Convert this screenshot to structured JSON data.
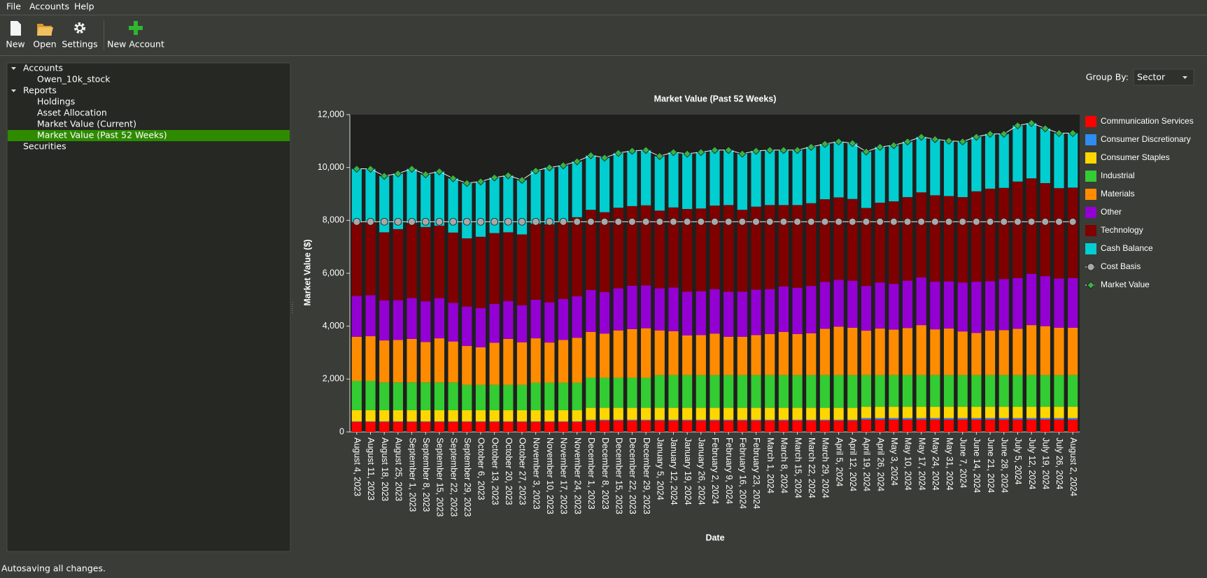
{
  "menu": [
    "File",
    "Accounts",
    "Help"
  ],
  "toolbar": [
    "New",
    "Open",
    "Settings",
    "New Account"
  ],
  "tree": [
    {
      "label": "Accounts",
      "children": [
        {
          "label": "Owen_10k_stock"
        }
      ]
    },
    {
      "label": "Reports",
      "children": [
        {
          "label": "Holdings"
        },
        {
          "label": "Asset Allocation"
        },
        {
          "label": "Market Value (Current)"
        },
        {
          "label": "Market Value (Past 52 Weeks)",
          "selected": true
        }
      ]
    },
    {
      "label": "Securities"
    }
  ],
  "group_by": {
    "label": "Group By:",
    "value": "Sector"
  },
  "status": "Autosaving all changes.",
  "chart_data": {
    "type": "bar",
    "stacked": true,
    "title": "Market Value (Past 52 Weeks)",
    "x_label": "Date",
    "y_label": "Market Value ($)",
    "legend": "right",
    "grid": false,
    "ylim": [
      0,
      12000
    ],
    "yticks": [
      0,
      {
        "value": 2000,
        "label": "2,000"
      },
      {
        "value": 4000,
        "label": "4,000"
      },
      {
        "value": 6000,
        "label": "6,000"
      },
      {
        "value": 8000,
        "label": "8,000"
      },
      {
        "value": 10000,
        "label": "10,000"
      },
      {
        "value": 12000,
        "label": "12,000"
      }
    ],
    "categories": [
      "August 4, 2023",
      "August 11, 2023",
      "August 18, 2023",
      "August 25, 2023",
      "September 1, 2023",
      "September 8, 2023",
      "September 15, 2023",
      "September 22, 2023",
      "September 29, 2023",
      "October 6, 2023",
      "October 13, 2023",
      "October 20, 2023",
      "October 27, 2023",
      "November 3, 2023",
      "November 10, 2023",
      "November 17, 2023",
      "November 24, 2023",
      "December 1, 2023",
      "December 8, 2023",
      "December 15, 2023",
      "December 22, 2023",
      "December 29, 2023",
      "January 5, 2024",
      "January 12, 2024",
      "January 19, 2024",
      "January 26, 2024",
      "February 2, 2024",
      "February 9, 2024",
      "February 16, 2024",
      "February 23, 2024",
      "March 1, 2024",
      "March 8, 2024",
      "March 15, 2024",
      "March 22, 2024",
      "March 29, 2024",
      "April 5, 2024",
      "April 12, 2024",
      "April 19, 2024",
      "April 26, 2024",
      "May 3, 2024",
      "May 10, 2024",
      "May 17, 2024",
      "May 24, 2024",
      "May 31, 2024",
      "June 7, 2024",
      "June 14, 2024",
      "June 21, 2024",
      "June 28, 2024",
      "July 5, 2024",
      "July 12, 2024",
      "July 19, 2024",
      "July 26, 2024",
      "August 2, 2024"
    ],
    "series": [
      {
        "name": "Communication Services",
        "color": "#ff0000",
        "values": [
          380,
          380,
          380,
          380,
          380,
          380,
          380,
          380,
          380,
          380,
          380,
          380,
          380,
          380,
          380,
          380,
          380,
          430,
          430,
          430,
          430,
          430,
          430,
          430,
          430,
          430,
          430,
          430,
          430,
          430,
          430,
          430,
          430,
          430,
          430,
          430,
          430,
          470,
          470,
          470,
          470,
          470,
          470,
          470,
          470,
          470,
          470,
          470,
          470,
          470,
          470,
          470,
          470
        ]
      },
      {
        "name": "Consumer Discretionary",
        "color": "#2f8cf0",
        "values": [
          20,
          20,
          20,
          20,
          20,
          20,
          20,
          20,
          20,
          20,
          20,
          20,
          20,
          20,
          20,
          20,
          20,
          30,
          30,
          30,
          30,
          30,
          30,
          30,
          30,
          30,
          30,
          30,
          30,
          30,
          30,
          30,
          30,
          30,
          30,
          30,
          30,
          60,
          60,
          60,
          60,
          60,
          60,
          60,
          60,
          60,
          60,
          60,
          60,
          60,
          60,
          60,
          60
        ]
      },
      {
        "name": "Consumer Staples",
        "color": "#ffd700",
        "values": [
          420,
          420,
          420,
          420,
          420,
          420,
          420,
          420,
          420,
          420,
          420,
          420,
          420,
          420,
          420,
          420,
          420,
          450,
          450,
          450,
          450,
          450,
          450,
          450,
          450,
          450,
          450,
          450,
          450,
          450,
          450,
          450,
          450,
          450,
          450,
          450,
          450,
          420,
          420,
          420,
          420,
          420,
          420,
          420,
          420,
          420,
          420,
          420,
          420,
          420,
          420,
          420,
          420
        ]
      },
      {
        "name": "Industrial",
        "color": "#33cc33",
        "values": [
          1110,
          1110,
          1050,
          1050,
          1050,
          1050,
          1050,
          1050,
          960,
          960,
          960,
          960,
          960,
          1040,
          1040,
          1040,
          1040,
          1140,
          1140,
          1140,
          1140,
          1140,
          1240,
          1240,
          1240,
          1240,
          1240,
          1240,
          1240,
          1240,
          1240,
          1240,
          1240,
          1240,
          1240,
          1240,
          1240,
          1200,
          1200,
          1200,
          1200,
          1200,
          1200,
          1200,
          1200,
          1200,
          1200,
          1200,
          1200,
          1200,
          1200,
          1200,
          1200
        ]
      },
      {
        "name": "Materials",
        "color": "#ff8c00",
        "values": [
          1670,
          1690,
          1590,
          1610,
          1650,
          1530,
          1670,
          1550,
          1470,
          1420,
          1590,
          1740,
          1610,
          1680,
          1520,
          1620,
          1700,
          1730,
          1670,
          1790,
          1840,
          1870,
          1690,
          1660,
          1500,
          1510,
          1570,
          1450,
          1450,
          1510,
          1550,
          1630,
          1550,
          1580,
          1750,
          1830,
          1790,
          1680,
          1760,
          1720,
          1780,
          1890,
          1730,
          1760,
          1650,
          1590,
          1680,
          1700,
          1750,
          1890,
          1850,
          1790,
          1790
        ]
      },
      {
        "name": "Other",
        "color": "#9400d3",
        "values": [
          1540,
          1550,
          1510,
          1500,
          1540,
          1540,
          1520,
          1460,
          1490,
          1480,
          1470,
          1430,
          1400,
          1460,
          1520,
          1550,
          1570,
          1590,
          1570,
          1590,
          1640,
          1620,
          1590,
          1650,
          1650,
          1660,
          1680,
          1700,
          1700,
          1720,
          1700,
          1720,
          1750,
          1790,
          1770,
          1770,
          1780,
          1690,
          1740,
          1730,
          1790,
          1800,
          1800,
          1780,
          1850,
          1940,
          1870,
          1930,
          1920,
          1940,
          1890,
          1860,
          1880
        ]
      },
      {
        "name": "Technology",
        "color": "#800000",
        "values": [
          2790,
          2760,
          2580,
          2690,
          2840,
          2810,
          2740,
          2660,
          2580,
          2700,
          2680,
          2600,
          2680,
          2870,
          2950,
          2930,
          2990,
          3030,
          3020,
          3050,
          3010,
          3030,
          2940,
          3030,
          3130,
          3130,
          3160,
          3280,
          3100,
          3140,
          3180,
          3080,
          3130,
          3130,
          3130,
          3120,
          3090,
          2950,
          3020,
          3120,
          3160,
          3220,
          3270,
          3230,
          3230,
          3420,
          3500,
          3450,
          3650,
          3610,
          3520,
          3420,
          3420
        ]
      },
      {
        "name": "Cash Balance",
        "color": "#00ced1",
        "values": [
          2020,
          2020,
          2130,
          2100,
          2050,
          1990,
          2050,
          2050,
          2090,
          2090,
          2100,
          2150,
          2060,
          2010,
          2150,
          2120,
          2110,
          2060,
          2060,
          2070,
          2090,
          2090,
          2060,
          2090,
          2090,
          2130,
          2100,
          2080,
          2120,
          2110,
          2080,
          2080,
          2080,
          2130,
          2090,
          2110,
          2110,
          2130,
          2110,
          2120,
          2100,
          2100,
          2120,
          2090,
          2100,
          2060,
          2070,
          2040,
          2120,
          2090,
          2070,
          2080,
          2060
        ]
      },
      {
        "name": "Cost Basis",
        "type": "line",
        "marker": "circle",
        "color": "#a8a8a8",
        "values": [
          7950,
          7950,
          7950,
          7950,
          7950,
          7950,
          7950,
          7950,
          7950,
          7950,
          7950,
          7950,
          7950,
          7950,
          7950,
          7950,
          7950,
          7950,
          7950,
          7950,
          7950,
          7950,
          7950,
          7950,
          7950,
          7950,
          7950,
          7950,
          7950,
          7950,
          7950,
          7950,
          7950,
          7950,
          7950,
          7950,
          7950,
          7950,
          7950,
          7950,
          7950,
          7950,
          7950,
          7950,
          7950,
          7950,
          7950,
          7950,
          7950,
          7950,
          7950,
          7950,
          7950
        ]
      },
      {
        "name": "Market Value",
        "type": "line",
        "marker": "diamond",
        "color": "#3cb043",
        "values": [
          9950,
          9950,
          9680,
          9770,
          9950,
          9740,
          9850,
          9590,
          9410,
          9470,
          9620,
          9700,
          9530,
          9880,
          10000,
          10080,
          10230,
          10460,
          10370,
          10550,
          10630,
          10660,
          10430,
          10580,
          10520,
          10580,
          10660,
          10660,
          10520,
          10630,
          10660,
          10660,
          10660,
          10780,
          10890,
          10980,
          10920,
          10600,
          10780,
          10840,
          10980,
          11160,
          11070,
          11010,
          10980,
          11160,
          11270,
          11270,
          11590,
          11680,
          11480,
          11300,
          11300
        ]
      }
    ]
  }
}
